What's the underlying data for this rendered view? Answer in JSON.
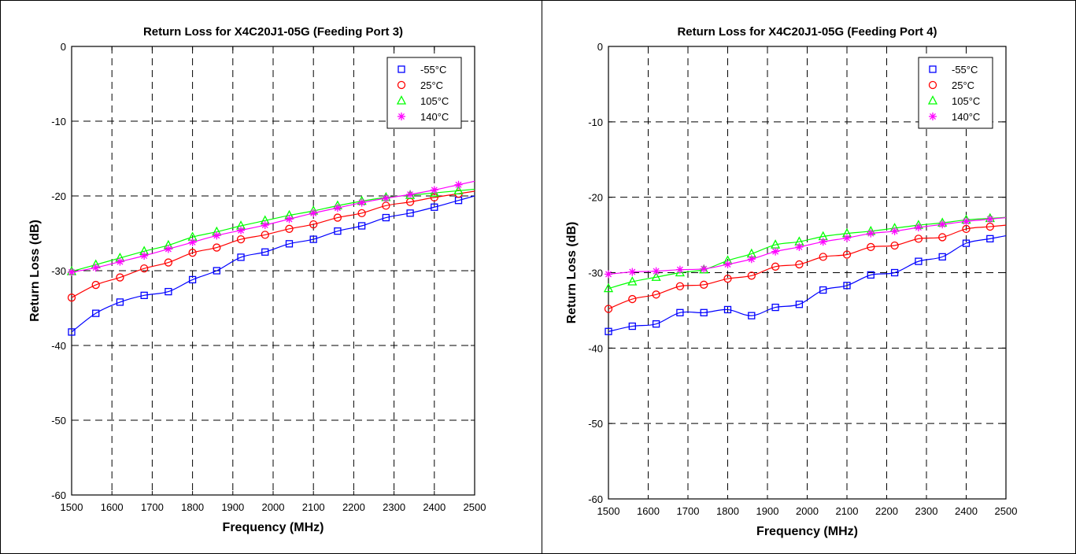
{
  "chart_data": [
    {
      "type": "line",
      "title": "Return Loss for X4C20J1-05G (Feeding Port 3)",
      "xlabel": "Frequency (MHz)",
      "ylabel": "Return Loss (dB)",
      "xlim": [
        1500,
        2500
      ],
      "ylim": [
        -60,
        0
      ],
      "xticks": [
        1500,
        1600,
        1700,
        1800,
        1900,
        2000,
        2100,
        2200,
        2300,
        2400,
        2500
      ],
      "yticks": [
        0,
        -10,
        -20,
        -30,
        -40,
        -50,
        -60
      ],
      "grid": true,
      "legend_position": "top-right",
      "x": [
        1500,
        1560,
        1620,
        1680,
        1740,
        1800,
        1860,
        1920,
        1980,
        2040,
        2100,
        2160,
        2220,
        2280,
        2340,
        2400,
        2460
      ],
      "series": [
        {
          "name": "-55°C",
          "color": "#0000ff",
          "marker": "square",
          "values": [
            -38.2,
            -35.7,
            -34.2,
            -33.3,
            -32.8,
            -31.2,
            -30.0,
            -28.2,
            -27.5,
            -26.4,
            -25.8,
            -24.7,
            -24.0,
            -22.9,
            -22.3,
            -21.5,
            -20.6
          ]
        },
        {
          "name": "25°C",
          "color": "#ff0000",
          "marker": "circle",
          "values": [
            -33.6,
            -31.9,
            -30.9,
            -29.7,
            -28.9,
            -27.6,
            -26.9,
            -25.8,
            -25.2,
            -24.4,
            -23.8,
            -22.9,
            -22.3,
            -21.3,
            -20.8,
            -20.2,
            -19.7
          ]
        },
        {
          "name": "105°C",
          "color": "#00ff00",
          "marker": "triangle",
          "values": [
            -30.1,
            -29.2,
            -28.3,
            -27.4,
            -26.6,
            -25.5,
            -24.8,
            -24.0,
            -23.3,
            -22.6,
            -22.0,
            -21.3,
            -20.7,
            -20.2,
            -19.9,
            -19.6,
            -19.3
          ]
        },
        {
          "name": "140°C",
          "color": "#ff00ff",
          "marker": "asterisk",
          "values": [
            -30.2,
            -29.6,
            -28.8,
            -28.0,
            -27.1,
            -26.2,
            -25.3,
            -24.6,
            -23.9,
            -23.1,
            -22.3,
            -21.6,
            -20.9,
            -20.3,
            -19.8,
            -19.2,
            -18.5
          ]
        }
      ]
    },
    {
      "type": "line",
      "title": "Return Loss for X4C20J1-05G (Feeding Port 4)",
      "xlabel": "Frequency (MHz)",
      "ylabel": "Return Loss (dB)",
      "xlim": [
        1500,
        2500
      ],
      "ylim": [
        -60,
        0
      ],
      "xticks": [
        1500,
        1600,
        1700,
        1800,
        1900,
        2000,
        2100,
        2200,
        2300,
        2400,
        2500
      ],
      "yticks": [
        0,
        -10,
        -20,
        -30,
        -40,
        -50,
        -60
      ],
      "grid": true,
      "legend_position": "top-right",
      "x": [
        1500,
        1560,
        1620,
        1680,
        1740,
        1800,
        1860,
        1920,
        1980,
        2040,
        2100,
        2160,
        2220,
        2280,
        2340,
        2400,
        2460
      ],
      "series": [
        {
          "name": "-55°C",
          "color": "#0000ff",
          "marker": "square",
          "values": [
            -37.8,
            -37.1,
            -36.8,
            -35.3,
            -35.3,
            -34.9,
            -35.7,
            -34.6,
            -34.2,
            -32.3,
            -31.7,
            -30.3,
            -30.0,
            -28.5,
            -27.9,
            -26.1,
            -25.5
          ]
        },
        {
          "name": "25°C",
          "color": "#ff0000",
          "marker": "circle",
          "values": [
            -34.8,
            -33.5,
            -32.9,
            -31.8,
            -31.6,
            -30.8,
            -30.4,
            -29.2,
            -28.9,
            -27.9,
            -27.6,
            -26.6,
            -26.4,
            -25.5,
            -25.3,
            -24.2,
            -23.9
          ]
        },
        {
          "name": "105°C",
          "color": "#00ff00",
          "marker": "triangle",
          "values": [
            -32.1,
            -31.2,
            -30.6,
            -30.0,
            -29.6,
            -28.4,
            -27.5,
            -26.3,
            -25.9,
            -25.2,
            -24.8,
            -24.5,
            -24.1,
            -23.7,
            -23.4,
            -23.0,
            -22.8
          ]
        },
        {
          "name": "140°C",
          "color": "#ff00ff",
          "marker": "asterisk",
          "values": [
            -30.2,
            -29.9,
            -29.8,
            -29.6,
            -29.5,
            -28.9,
            -28.2,
            -27.2,
            -26.6,
            -25.9,
            -25.4,
            -24.8,
            -24.5,
            -24.0,
            -23.6,
            -23.2,
            -22.9
          ]
        }
      ]
    }
  ]
}
